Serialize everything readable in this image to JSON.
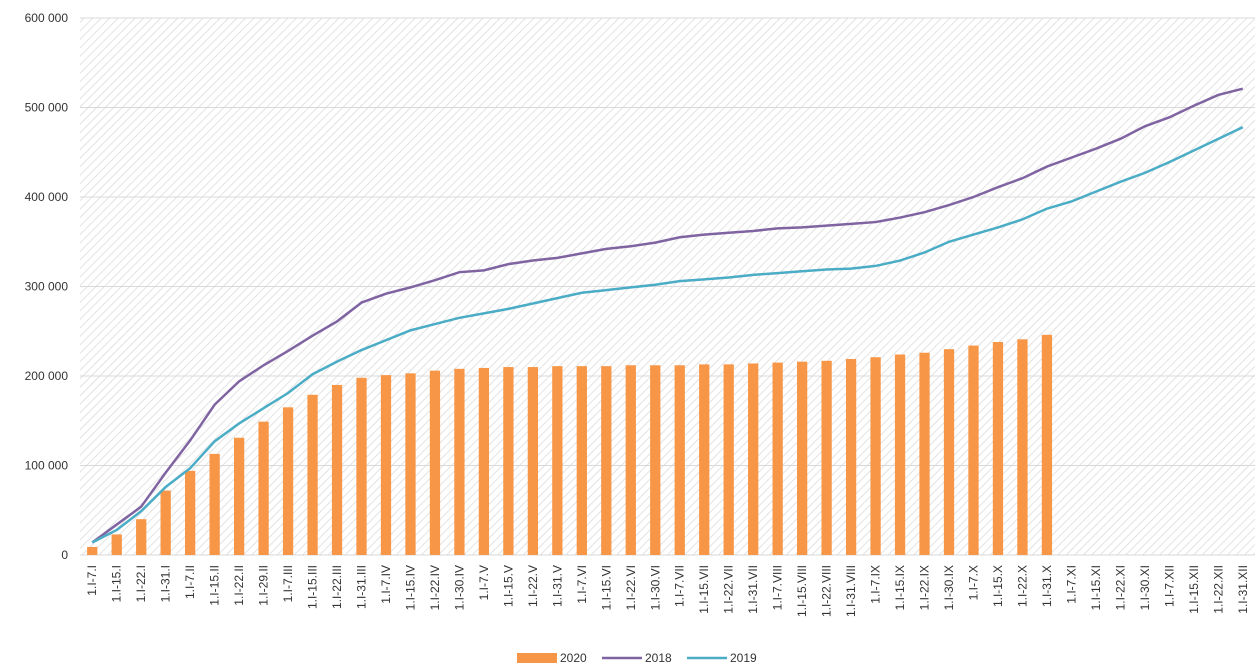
{
  "chart_data": {
    "type": "combo",
    "categories": [
      "1.I-7.I",
      "1.I-15.I",
      "1.I-22.I",
      "1.I-31.I",
      "1.I-7.II",
      "1.I-15.II",
      "1.I-22.II",
      "1.I-29.II",
      "1.I-7.III",
      "1.I-15.III",
      "1.I-22.III",
      "1.I-31.III",
      "1.I-7.IV",
      "1.I-15.IV",
      "1.I-22.IV",
      "1.I-30.IV",
      "1.I-7.V",
      "1.I-15.V",
      "1.I-22.V",
      "1.I-31.V",
      "1.I-7.VI",
      "1.I-15.VI",
      "1.I-22.VI",
      "1.I-30.VI",
      "1.I-7.VII",
      "1.I-15.VII",
      "1.I-22.VII",
      "1.I-31.VII",
      "1.I-7.VIII",
      "1.I-15.VIII",
      "1.I-22.VIII",
      "1.I-31.VIII",
      "1.I-7.IX",
      "1.I-15.IX",
      "1.I-22.IX",
      "1.I-30.IX",
      "1.I-7.X",
      "1.I-15.X",
      "1.I-22.X",
      "1.I-31.X",
      "1.I-7.XI",
      "1.I-15.XI",
      "1.I-22.XI",
      "1.I-30.XI",
      "1.I-7.XII",
      "1.I-15.XII",
      "1.I-22.XII",
      "1.I-31.XII"
    ],
    "series": [
      {
        "name": "2020",
        "type": "bar",
        "color": "#f79646",
        "values": [
          9000,
          23000,
          40000,
          72000,
          94000,
          113000,
          131000,
          149000,
          165000,
          179000,
          190000,
          198000,
          201000,
          203000,
          206000,
          208000,
          209000,
          210000,
          210000,
          211000,
          211000,
          211000,
          212000,
          212000,
          212000,
          213000,
          213000,
          214000,
          215000,
          216000,
          217000,
          219000,
          221000,
          224000,
          226000,
          230000,
          234000,
          238000,
          241000,
          246000,
          null,
          null,
          null,
          null,
          null,
          null,
          null,
          null
        ]
      },
      {
        "name": "2018",
        "type": "line",
        "color": "#8064a2",
        "values": [
          14000,
          34000,
          54000,
          92000,
          128000,
          168000,
          194000,
          212000,
          228000,
          245000,
          261000,
          282000,
          292000,
          299000,
          307000,
          316000,
          318000,
          325000,
          329000,
          332000,
          337000,
          342000,
          345000,
          349000,
          355000,
          358000,
          360000,
          362000,
          365000,
          366000,
          368000,
          370000,
          372000,
          377000,
          383000,
          391000,
          400000,
          411000,
          421000,
          434000,
          444000,
          454000,
          465000,
          479000,
          489000,
          502000,
          514000,
          521000
        ]
      },
      {
        "name": "2019",
        "type": "line",
        "color": "#4bacc6",
        "values": [
          14000,
          28000,
          49000,
          76000,
          97000,
          127000,
          147000,
          164000,
          181000,
          202000,
          216000,
          229000,
          240000,
          251000,
          258000,
          265000,
          270000,
          275000,
          281000,
          287000,
          293000,
          296000,
          299000,
          302000,
          306000,
          308000,
          310000,
          313000,
          315000,
          317000,
          319000,
          320000,
          323000,
          329000,
          338000,
          350000,
          358000,
          366000,
          375000,
          387000,
          395000,
          406000,
          417000,
          427000,
          439000,
          452000,
          465000,
          478000
        ]
      }
    ],
    "ylim": [
      0,
      600000
    ],
    "yticks": [
      0,
      {
        "value": 100000,
        "label": "100 000"
      },
      {
        "value": 200000,
        "label": "200 000"
      },
      {
        "value": 300000,
        "label": "300 000"
      },
      {
        "value": 400000,
        "label": "400 000"
      },
      {
        "value": 500000,
        "label": "500 000"
      },
      {
        "value": 600000,
        "label": "600 000"
      }
    ],
    "grid": true,
    "legend": "bottom"
  }
}
